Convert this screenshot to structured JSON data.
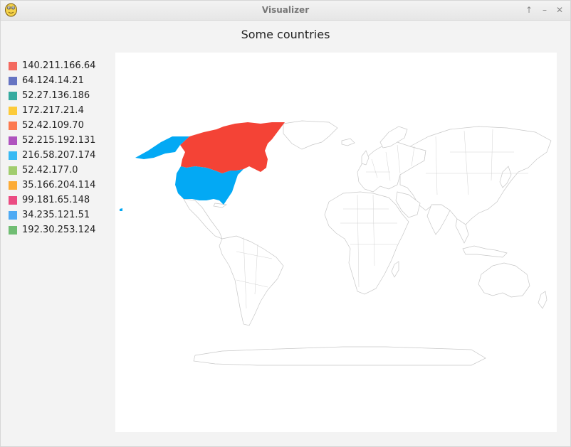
{
  "window": {
    "title": "Visualizer",
    "app_icon": "python-logo-icon",
    "controls": {
      "maximize": "↑",
      "minimize": "–",
      "close": "✕"
    }
  },
  "chart": {
    "title": "Some countries",
    "legend": [
      {
        "label": "140.211.166.64",
        "color": "#f44336"
      },
      {
        "label": "64.124.14.21",
        "color": "#3f51b5"
      },
      {
        "label": "52.27.136.186",
        "color": "#009688"
      },
      {
        "label": "172.217.21.4",
        "color": "#ffc107"
      },
      {
        "label": "52.42.109.70",
        "color": "#ff5722"
      },
      {
        "label": "52.215.192.131",
        "color": "#9c27b0"
      },
      {
        "label": "216.58.207.174",
        "color": "#03a9f4"
      },
      {
        "label": "52.42.177.0",
        "color": "#8bc34a"
      },
      {
        "label": "35.166.204.114",
        "color": "#ff9800"
      },
      {
        "label": "99.181.65.148",
        "color": "#e91e63"
      },
      {
        "label": "34.235.121.51",
        "color": "#2196f3"
      },
      {
        "label": "192.30.253.124",
        "color": "#4caf50"
      }
    ],
    "highlighted_countries": [
      {
        "name": "Canada",
        "color": "#f44336"
      },
      {
        "name": "United States",
        "color": "#03a9f4"
      }
    ]
  }
}
